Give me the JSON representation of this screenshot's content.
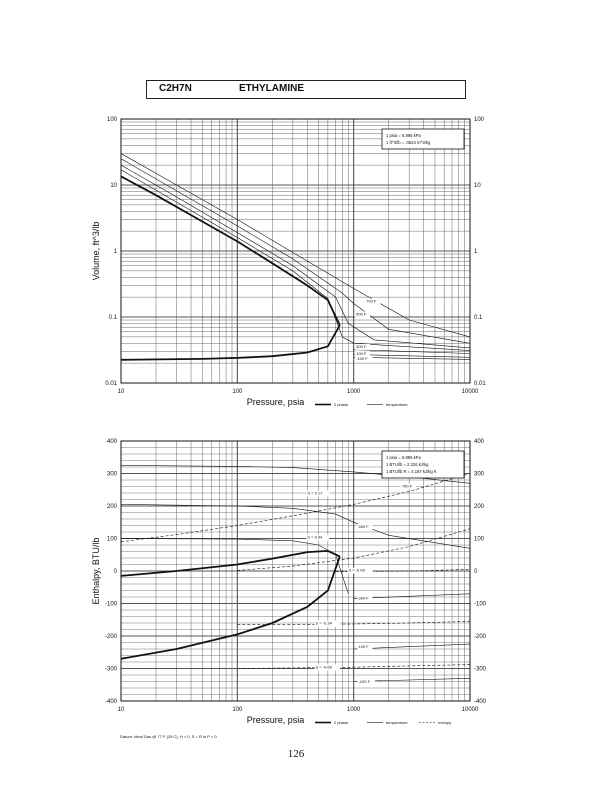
{
  "header": {
    "formula": "C2H7N",
    "name": "ETHYLAMINE"
  },
  "page_number": "126",
  "footnote": "Datum: Ideal Gas @ 77 F (25 C), H = 0, S = R ln P = 0",
  "colors": {
    "ink": "#111111",
    "grid": "#555555"
  },
  "chart_data": [
    {
      "type": "line",
      "xlabel": "Pressure, psia",
      "ylabel": "Volume, ft^3/lb",
      "xscale": "log",
      "yscale": "log",
      "xlim": [
        10,
        10000
      ],
      "ylim": [
        0.01,
        100
      ],
      "x_ticks": [
        "10",
        "100",
        "1000",
        "10000"
      ],
      "y_ticks": [
        "0.01",
        "0.1",
        "1",
        "10",
        "100"
      ],
      "grid": true,
      "conversion_box": [
        "1 psia = 6.895 kPa",
        "1 ft^3/lb = .0624 m^3/kg"
      ],
      "legend": [
        "2 phase",
        "temperature"
      ],
      "legend_position": "bottom-right",
      "series": [
        {
          "style": "two-phase",
          "x": [
            10,
            20,
            50,
            100,
            200,
            400,
            600,
            760
          ],
          "y": [
            13.5,
            7,
            2.8,
            1.4,
            0.65,
            0.3,
            0.18,
            0.075
          ]
        },
        {
          "style": "two-phase",
          "x": [
            10,
            50,
            100,
            200,
            400,
            600,
            760
          ],
          "y": [
            0.0225,
            0.0232,
            0.024,
            0.0255,
            0.029,
            0.036,
            0.075
          ]
        },
        {
          "style": "temperature",
          "x": [
            10,
            30,
            100,
            300,
            1000,
            3000,
            10000
          ],
          "y": [
            30,
            10,
            3,
            0.95,
            0.27,
            0.09,
            0.05
          ]
        },
        {
          "style": "temperature",
          "x": [
            10,
            30,
            100,
            300,
            800,
            1000,
            2000,
            10000
          ],
          "y": [
            25,
            8.2,
            2.4,
            0.76,
            0.23,
            0.16,
            0.065,
            0.04
          ]
        },
        {
          "style": "temperature",
          "x": [
            10,
            30,
            100,
            300,
            700,
            900,
            1500,
            10000
          ],
          "y": [
            20,
            6.6,
            1.9,
            0.6,
            0.2,
            0.08,
            0.045,
            0.034
          ]
        },
        {
          "style": "temperature",
          "x": [
            10,
            30,
            100,
            300,
            600,
            800,
            1000,
            10000
          ],
          "y": [
            17,
            5.5,
            1.6,
            0.5,
            0.19,
            0.05,
            0.04,
            0.031
          ]
        },
        {
          "style": "temperature",
          "x": [
            1000,
            10000
          ],
          "y": [
            0.032,
            0.028
          ]
        },
        {
          "style": "temperature",
          "x": [
            1000,
            10000
          ],
          "y": [
            0.027,
            0.0245
          ]
        },
        {
          "style": "temperature",
          "x": [
            1000,
            10000
          ],
          "y": [
            0.0245,
            0.0228
          ]
        }
      ],
      "annotations": [
        {
          "text": "700 F",
          "x": 1280,
          "y": 0.165
        },
        {
          "text": "500 F",
          "x": 1050,
          "y": 0.105
        },
        {
          "text": "300 F",
          "x": 1050,
          "y": 0.034
        },
        {
          "text": "100 F",
          "x": 1050,
          "y": 0.0265
        },
        {
          "text": "-100 F",
          "x": 1050,
          "y": 0.0225
        }
      ]
    },
    {
      "type": "line",
      "xlabel": "Pressure, psia",
      "ylabel": "Enthalpy, BTU/lb",
      "xscale": "log",
      "xlim": [
        10,
        10000
      ],
      "ylim": [
        -400,
        400
      ],
      "x_ticks": [
        "10",
        "100",
        "1000",
        "10000"
      ],
      "y_ticks": [
        "-400",
        "-300",
        "-200",
        "-100",
        "0",
        "100",
        "200",
        "300",
        "400"
      ],
      "grid": true,
      "conversion_box": [
        "1 psia = 6.895 kPa",
        "1 BTU/lb = 2.326 kJ/kg",
        "1 BTU/lb R = 4.187 kJ/kg K"
      ],
      "legend": [
        "2 phase",
        "temperature",
        "entropy"
      ],
      "legend_position": "bottom-right",
      "series": [
        {
          "style": "two-phase",
          "x": [
            10,
            30,
            100,
            200,
            400,
            600,
            760
          ],
          "y": [
            -15,
            0,
            20,
            38,
            58,
            62,
            45
          ]
        },
        {
          "style": "two-phase",
          "x": [
            10,
            30,
            100,
            200,
            400,
            600,
            760
          ],
          "y": [
            -270,
            -240,
            -195,
            -160,
            -110,
            -60,
            45
          ]
        },
        {
          "style": "temperature",
          "x": [
            10,
            100,
            300,
            1000,
            3000,
            10000
          ],
          "y": [
            325,
            322,
            318,
            305,
            290,
            270
          ]
        },
        {
          "style": "temperature",
          "x": [
            10,
            100,
            300,
            700,
            1000,
            2000,
            10000
          ],
          "y": [
            205,
            200,
            193,
            175,
            150,
            110,
            70
          ]
        },
        {
          "style": "temperature",
          "x": [
            10,
            100,
            300,
            500,
            700,
            900
          ],
          "y": [
            100,
            98,
            93,
            80,
            50,
            -70
          ]
        },
        {
          "style": "temperature",
          "x": [
            1000,
            10000
          ],
          "y": [
            -85,
            -70
          ]
        },
        {
          "style": "temperature",
          "x": [
            1000,
            10000
          ],
          "y": [
            -240,
            -225
          ]
        },
        {
          "style": "temperature",
          "x": [
            1000,
            10000
          ],
          "y": [
            -340,
            -330
          ]
        },
        {
          "style": "entropy",
          "x": [
            10,
            30,
            100,
            300,
            1000,
            3000,
            10000
          ],
          "y": [
            90,
            112,
            140,
            170,
            205,
            245,
            300
          ]
        },
        {
          "style": "entropy",
          "x": [
            100,
            300,
            1000,
            3000,
            10000
          ],
          "y": [
            2,
            15,
            40,
            75,
            130
          ]
        },
        {
          "style": "entropy",
          "x": [
            700,
            1000,
            3000,
            10000
          ],
          "y": [
            -2,
            -2,
            0,
            5
          ]
        },
        {
          "style": "entropy",
          "x": [
            100,
            300,
            1000,
            3000,
            10000
          ],
          "y": [
            -165,
            -165,
            -163,
            -160,
            -155
          ]
        },
        {
          "style": "entropy",
          "x": [
            100,
            300,
            1000,
            3000,
            10000
          ],
          "y": [
            -300,
            -298,
            -296,
            -292,
            -288
          ]
        }
      ],
      "annotations": [
        {
          "text": "700 F",
          "x": 2600,
          "y": 257
        },
        {
          "text": "500 F",
          "x": 1100,
          "y": 133
        },
        {
          "text": "300 F",
          "x": 1100,
          "y": -88
        },
        {
          "text": "100 F",
          "x": 1100,
          "y": -237
        },
        {
          "text": "-100 F",
          "x": 1100,
          "y": -345
        },
        {
          "text": "S = 0.17",
          "x": 400,
          "y": 235
        },
        {
          "text": "S = 0.04",
          "x": 400,
          "y": 100
        },
        {
          "text": "S = -0.09",
          "x": 900,
          "y": -2
        },
        {
          "text": "S = -0.34",
          "x": 470,
          "y": -165
        },
        {
          "text": "S = -0.69",
          "x": 470,
          "y": -300
        }
      ]
    }
  ]
}
